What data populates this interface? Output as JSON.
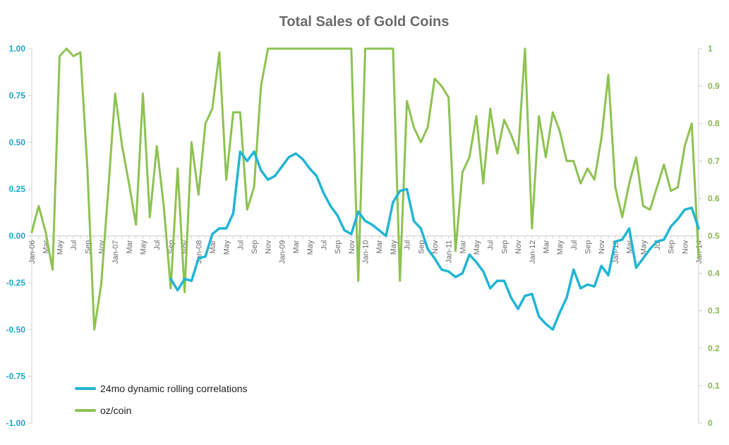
{
  "chart_data": {
    "type": "line",
    "title": "Total Sales of Gold Coins",
    "xlabel": "",
    "ylabel": "",
    "y2label": "",
    "grid": false,
    "legend_position": "bottom-left",
    "colors": {
      "correlation": "#22b5d4",
      "oz_coin": "#8dc251",
      "axis": "#cfcfcf",
      "title": "#6b6b6b",
      "left_ticks": "#1aa7c4",
      "right_ticks": "#8ab84f"
    },
    "y_left": {
      "lim": [
        -1,
        1
      ],
      "ticks": [
        "1.00",
        "0.75",
        "0.50",
        "0.25",
        "0.00",
        "-0.25",
        "-0.50",
        "-0.75",
        "-1.00"
      ]
    },
    "y_right": {
      "lim": [
        0,
        1
      ],
      "ticks": [
        "1",
        "0.9",
        "0.8",
        "0.7",
        "0.6",
        "0.5",
        "0.4",
        "0.3",
        "0.2",
        "0.1",
        "0"
      ]
    },
    "x_start": "Jan-06",
    "x_tick_labels": [
      "Jan-06",
      "Mar",
      "May",
      "Jul",
      "Sep",
      "Nov",
      "Jan-07",
      "Mar",
      "May",
      "Jul",
      "Sep",
      "Nov",
      "Jan-08",
      "Mar",
      "May",
      "Jul",
      "Sep",
      "Nov",
      "Jan-09",
      "Mar",
      "May",
      "Jul",
      "Sep",
      "Nov",
      "Jan-10",
      "Mar",
      "May",
      "Jul",
      "Sep",
      "Nov",
      "Jan-11",
      "Mar",
      "May",
      "Jul",
      "Sep",
      "Nov",
      "Jan-12",
      "Mar",
      "May",
      "Jul",
      "Sep",
      "Nov",
      "Jan-13",
      "Mar",
      "May",
      "Jul",
      "Sep",
      "Nov",
      "Jan-14"
    ],
    "series": [
      {
        "name": "24mo dynamic rolling correlations",
        "axis": "left",
        "values": [
          null,
          null,
          null,
          null,
          null,
          null,
          null,
          null,
          null,
          null,
          null,
          null,
          null,
          null,
          null,
          null,
          null,
          null,
          null,
          null,
          -0.23,
          -0.29,
          -0.23,
          -0.24,
          -0.12,
          -0.11,
          0.01,
          0.04,
          0.04,
          0.12,
          0.45,
          0.4,
          0.45,
          0.35,
          0.3,
          0.32,
          0.37,
          0.42,
          0.44,
          0.41,
          0.36,
          0.32,
          0.23,
          0.16,
          0.11,
          0.03,
          0.01,
          0.13,
          0.08,
          0.06,
          0.03,
          0.0,
          0.18,
          0.24,
          0.25,
          0.08,
          0.04,
          -0.07,
          -0.12,
          -0.18,
          -0.19,
          -0.22,
          -0.2,
          -0.1,
          -0.14,
          -0.19,
          -0.28,
          -0.24,
          -0.24,
          -0.33,
          -0.39,
          -0.32,
          -0.31,
          -0.43,
          -0.47,
          -0.5,
          -0.41,
          -0.33,
          -0.18,
          -0.28,
          -0.26,
          -0.27,
          -0.16,
          -0.21,
          -0.03,
          -0.02,
          0.04,
          -0.17,
          -0.12,
          -0.07,
          -0.03,
          -0.02,
          0.05,
          0.09,
          0.14,
          0.15,
          0.04
        ]
      },
      {
        "name": "oz/coin",
        "axis": "right",
        "values": [
          0.51,
          0.58,
          0.51,
          0.41,
          0.98,
          1.0,
          0.98,
          0.99,
          0.68,
          0.25,
          0.37,
          0.62,
          0.88,
          0.74,
          0.64,
          0.53,
          0.88,
          0.55,
          0.74,
          0.58,
          0.36,
          0.68,
          0.35,
          0.75,
          0.61,
          0.8,
          0.84,
          0.99,
          0.65,
          0.83,
          0.83,
          0.57,
          0.63,
          0.9,
          1.0,
          1.0,
          1.0,
          1.0,
          1.0,
          1.0,
          1.0,
          1.0,
          1.0,
          1.0,
          1.0,
          1.0,
          1.0,
          0.38,
          1.0,
          1.0,
          1.0,
          1.0,
          1.0,
          0.38,
          0.86,
          0.79,
          0.75,
          0.79,
          0.92,
          0.9,
          0.87,
          0.46,
          0.67,
          0.71,
          0.82,
          0.64,
          0.84,
          0.72,
          0.81,
          0.77,
          0.72,
          1.0,
          0.52,
          0.82,
          0.71,
          0.83,
          0.78,
          0.7,
          0.7,
          0.64,
          0.68,
          0.65,
          0.76,
          0.93,
          0.63,
          0.55,
          0.64,
          0.71,
          0.58,
          0.57,
          0.63,
          0.69,
          0.62,
          0.63,
          0.74,
          0.8,
          0.44
        ]
      }
    ]
  }
}
